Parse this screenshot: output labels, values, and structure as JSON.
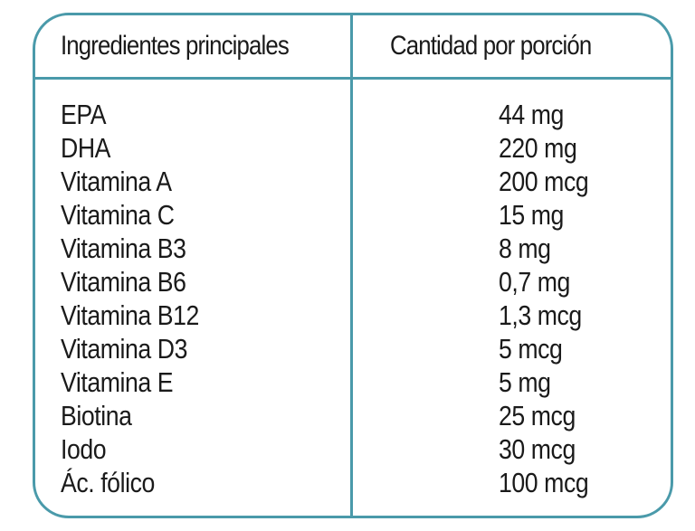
{
  "table": {
    "headers": {
      "ingredient": "Ingredientes principales",
      "amount": "Cantidad por porción"
    },
    "rows": [
      {
        "name": "EPA",
        "amount": "44 mg"
      },
      {
        "name": "DHA",
        "amount": "220 mg"
      },
      {
        "name": "Vitamina A",
        "amount": "200 mcg"
      },
      {
        "name": "Vitamina C",
        "amount": "15 mg"
      },
      {
        "name": "Vitamina B3",
        "amount": "8 mg"
      },
      {
        "name": "Vitamina B6",
        "amount": "0,7 mg"
      },
      {
        "name": "Vitamina B12",
        "amount": "1,3 mcg"
      },
      {
        "name": "Vitamina D3",
        "amount": "5 mcg"
      },
      {
        "name": "Vitamina E",
        "amount": "5 mg"
      },
      {
        "name": "Biotina",
        "amount": "25 mcg"
      },
      {
        "name": "Iodo",
        "amount": "30 mcg"
      },
      {
        "name": "Ác. fólico",
        "amount": "100 mcg"
      }
    ]
  },
  "colors": {
    "border": "#4a9aaa",
    "text": "#1a1a1a"
  }
}
